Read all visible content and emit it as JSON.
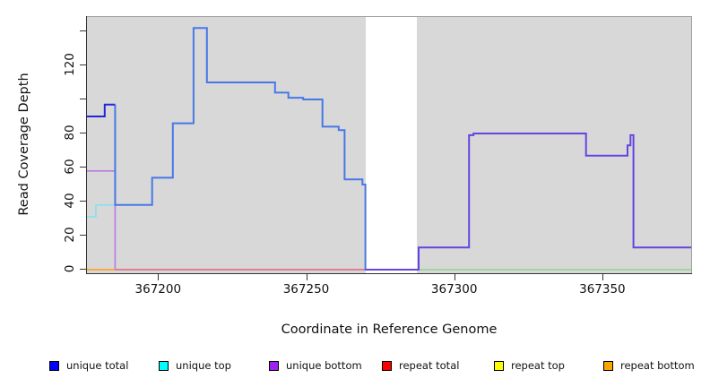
{
  "chart_data": {
    "type": "line",
    "subtype": "step-coverage",
    "title": "",
    "xlabel": "Coordinate in Reference Genome",
    "ylabel": "Read Coverage Depth",
    "xlim": [
      367176,
      367380
    ],
    "ylim": [
      0,
      150
    ],
    "x_ticks": [
      367200,
      367250,
      367300,
      367350
    ],
    "x_tick_labels": [
      "367200",
      "367250",
      "367300",
      "367350"
    ],
    "y_ticks": [
      0,
      20,
      40,
      60,
      80,
      100,
      120,
      140
    ],
    "y_tick_labels": [
      "0",
      "20",
      "40",
      "60",
      "80",
      "",
      "120",
      ""
    ],
    "grid": false,
    "panel_background": "#d8d8d8",
    "gap_region": {
      "x0": 367270.2,
      "x1": 367287.5,
      "color": "#ffffff",
      "note": "no-coverage white band"
    },
    "legend_position": "bottom",
    "legend": [
      {
        "label": "unique total",
        "color": "#0000ff"
      },
      {
        "label": "unique top",
        "color": "#00ffff"
      },
      {
        "label": "unique bottom",
        "color": "#a020f0"
      },
      {
        "label": "repeat total",
        "color": "#ff0000"
      },
      {
        "label": "repeat top",
        "color": "#ffff00"
      },
      {
        "label": "repeat bottom",
        "color": "#ffa500"
      }
    ],
    "series": [
      {
        "name": "unique-top-left-start",
        "color": "#85e2ec",
        "width": 1.6,
        "points": [
          [
            367176,
            31
          ],
          [
            367179,
            31
          ],
          [
            367179,
            38
          ],
          [
            367186,
            38
          ]
        ]
      },
      {
        "name": "unique-bottom-left-start",
        "color": "#bd7ae0",
        "width": 1.6,
        "points": [
          [
            367176,
            58
          ],
          [
            367185.5,
            58
          ],
          [
            367185.5,
            0
          ]
        ]
      },
      {
        "name": "repeat-bottom-left-start",
        "color": "#ffa12e",
        "width": 1.8,
        "points": [
          [
            367176,
            0
          ],
          [
            367185.5,
            0
          ]
        ]
      },
      {
        "name": "repeat-total-baseline-left",
        "color": "#e26080",
        "width": 1.5,
        "points": [
          [
            367185.5,
            0
          ],
          [
            367270.5,
            0
          ]
        ]
      },
      {
        "name": "baseline-right",
        "color": "#8fd48f",
        "width": 1.5,
        "points": [
          [
            367288,
            0
          ],
          [
            367380.5,
            0
          ]
        ]
      },
      {
        "name": "unique-total-main",
        "color": "#4878e6",
        "width": 2,
        "points": [
          [
            367185.5,
            97
          ],
          [
            367185.5,
            38
          ],
          [
            367198,
            38
          ],
          [
            367198,
            54
          ],
          [
            367205,
            54
          ],
          [
            367205,
            86
          ],
          [
            367212,
            86
          ],
          [
            367212,
            142
          ],
          [
            367216.5,
            142
          ],
          [
            367216.5,
            110
          ],
          [
            367239.5,
            110
          ],
          [
            367239.5,
            104
          ],
          [
            367244,
            104
          ],
          [
            367244,
            101
          ],
          [
            367249,
            101
          ],
          [
            367249,
            100
          ],
          [
            367255.5,
            100
          ],
          [
            367255.5,
            84
          ],
          [
            367261,
            84
          ],
          [
            367261,
            82
          ],
          [
            367263,
            82
          ],
          [
            367263,
            53
          ],
          [
            367269,
            53
          ],
          [
            367269,
            50
          ],
          [
            367270,
            50
          ],
          [
            367270,
            0
          ],
          [
            367288,
            0
          ]
        ]
      },
      {
        "name": "unique-total-left-start",
        "color": "#2525d8",
        "width": 2,
        "points": [
          [
            367176,
            90
          ],
          [
            367182,
            90
          ],
          [
            367182,
            97
          ],
          [
            367185.5,
            97
          ]
        ]
      },
      {
        "name": "unique-bottom-right",
        "color": "#6544e0",
        "width": 2,
        "points": [
          [
            367270,
            0
          ],
          [
            367288,
            0
          ],
          [
            367288,
            13
          ],
          [
            367305,
            13
          ],
          [
            367305,
            79
          ],
          [
            367306.5,
            79
          ],
          [
            367306.5,
            80
          ],
          [
            367344.5,
            80
          ],
          [
            367344.5,
            67
          ],
          [
            367358.5,
            67
          ],
          [
            367358.5,
            73
          ],
          [
            367359.5,
            73
          ],
          [
            367359.5,
            79
          ],
          [
            367360.5,
            79
          ],
          [
            367360.5,
            13
          ],
          [
            367380.5,
            13
          ]
        ]
      }
    ]
  }
}
